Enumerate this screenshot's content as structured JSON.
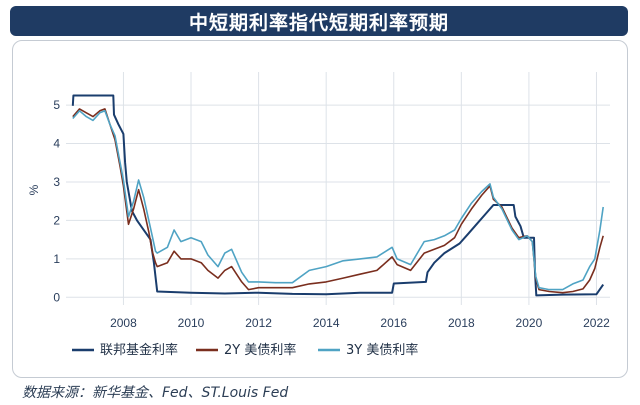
{
  "title": "中短期利率指代短期利率预期",
  "source": "数据来源：新华基金、Fed、ST.Louis Fed",
  "chart_data": {
    "type": "line",
    "ylabel": "%",
    "ylim": [
      -0.2,
      5.6
    ],
    "xlim": [
      2006.3,
      2022.4
    ],
    "x_ticks": [
      2008,
      2010,
      2012,
      2014,
      2016,
      2018,
      2020,
      2022
    ],
    "y_ticks": [
      0,
      1,
      2,
      3,
      4,
      5
    ],
    "legend_position": "bottom",
    "series": [
      {
        "name": "联邦基金利率",
        "color": "#1a3d6d",
        "points": [
          [
            2006.5,
            4.98
          ],
          [
            2006.52,
            5.25
          ],
          [
            2007.7,
            5.25
          ],
          [
            2007.72,
            4.75
          ],
          [
            2007.85,
            4.5
          ],
          [
            2008.0,
            4.25
          ],
          [
            2008.05,
            3.5
          ],
          [
            2008.1,
            3.0
          ],
          [
            2008.25,
            2.25
          ],
          [
            2008.4,
            2.0
          ],
          [
            2008.8,
            1.5
          ],
          [
            2008.9,
            0.9
          ],
          [
            2009.0,
            0.15
          ],
          [
            2010.0,
            0.12
          ],
          [
            2011.0,
            0.1
          ],
          [
            2012.0,
            0.12
          ],
          [
            2013.0,
            0.09
          ],
          [
            2014.0,
            0.08
          ],
          [
            2015.0,
            0.12
          ],
          [
            2015.95,
            0.12
          ],
          [
            2016.0,
            0.36
          ],
          [
            2016.95,
            0.4
          ],
          [
            2017.0,
            0.65
          ],
          [
            2017.2,
            0.9
          ],
          [
            2017.5,
            1.15
          ],
          [
            2017.95,
            1.4
          ],
          [
            2018.2,
            1.65
          ],
          [
            2018.45,
            1.9
          ],
          [
            2018.7,
            2.15
          ],
          [
            2018.95,
            2.4
          ],
          [
            2019.55,
            2.4
          ],
          [
            2019.6,
            2.1
          ],
          [
            2019.75,
            1.85
          ],
          [
            2019.85,
            1.55
          ],
          [
            2020.15,
            1.55
          ],
          [
            2020.18,
            0.65
          ],
          [
            2020.22,
            0.05
          ],
          [
            2021.0,
            0.07
          ],
          [
            2022.0,
            0.08
          ],
          [
            2022.2,
            0.33
          ]
        ]
      },
      {
        "name": "2Y 美债利率",
        "color": "#7a2e1e",
        "points": [
          [
            2006.5,
            4.7
          ],
          [
            2006.7,
            4.9
          ],
          [
            2006.9,
            4.8
          ],
          [
            2007.1,
            4.7
          ],
          [
            2007.3,
            4.85
          ],
          [
            2007.45,
            4.9
          ],
          [
            2007.6,
            4.5
          ],
          [
            2007.75,
            4.1
          ],
          [
            2007.9,
            3.4
          ],
          [
            2008.0,
            2.9
          ],
          [
            2008.15,
            1.9
          ],
          [
            2008.3,
            2.3
          ],
          [
            2008.45,
            2.8
          ],
          [
            2008.6,
            2.3
          ],
          [
            2008.75,
            1.7
          ],
          [
            2008.85,
            1.2
          ],
          [
            2008.95,
            0.9
          ],
          [
            2009.0,
            0.8
          ],
          [
            2009.3,
            0.9
          ],
          [
            2009.5,
            1.2
          ],
          [
            2009.7,
            1.0
          ],
          [
            2010.0,
            1.0
          ],
          [
            2010.3,
            0.9
          ],
          [
            2010.5,
            0.7
          ],
          [
            2010.8,
            0.5
          ],
          [
            2011.0,
            0.7
          ],
          [
            2011.2,
            0.8
          ],
          [
            2011.5,
            0.4
          ],
          [
            2011.7,
            0.2
          ],
          [
            2012.0,
            0.25
          ],
          [
            2012.5,
            0.25
          ],
          [
            2013.0,
            0.25
          ],
          [
            2013.5,
            0.35
          ],
          [
            2014.0,
            0.4
          ],
          [
            2014.5,
            0.5
          ],
          [
            2015.0,
            0.6
          ],
          [
            2015.5,
            0.7
          ],
          [
            2015.95,
            1.05
          ],
          [
            2016.1,
            0.85
          ],
          [
            2016.5,
            0.7
          ],
          [
            2016.9,
            1.15
          ],
          [
            2017.2,
            1.25
          ],
          [
            2017.5,
            1.35
          ],
          [
            2017.8,
            1.55
          ],
          [
            2018.0,
            1.9
          ],
          [
            2018.3,
            2.3
          ],
          [
            2018.6,
            2.65
          ],
          [
            2018.85,
            2.9
          ],
          [
            2018.95,
            2.55
          ],
          [
            2019.2,
            2.35
          ],
          [
            2019.5,
            1.8
          ],
          [
            2019.7,
            1.55
          ],
          [
            2019.95,
            1.6
          ],
          [
            2020.1,
            1.45
          ],
          [
            2020.2,
            0.5
          ],
          [
            2020.3,
            0.2
          ],
          [
            2020.6,
            0.15
          ],
          [
            2021.0,
            0.12
          ],
          [
            2021.3,
            0.15
          ],
          [
            2021.6,
            0.22
          ],
          [
            2021.8,
            0.45
          ],
          [
            2021.95,
            0.75
          ],
          [
            2022.1,
            1.3
          ],
          [
            2022.2,
            1.6
          ]
        ]
      },
      {
        "name": "3Y 美债利率",
        "color": "#4fa3c4",
        "points": [
          [
            2006.5,
            4.65
          ],
          [
            2006.7,
            4.85
          ],
          [
            2006.9,
            4.7
          ],
          [
            2007.1,
            4.6
          ],
          [
            2007.3,
            4.8
          ],
          [
            2007.45,
            4.85
          ],
          [
            2007.6,
            4.5
          ],
          [
            2007.75,
            4.2
          ],
          [
            2007.9,
            3.5
          ],
          [
            2008.0,
            3.05
          ],
          [
            2008.15,
            2.1
          ],
          [
            2008.3,
            2.5
          ],
          [
            2008.45,
            3.05
          ],
          [
            2008.6,
            2.6
          ],
          [
            2008.75,
            2.0
          ],
          [
            2008.85,
            1.6
          ],
          [
            2008.95,
            1.2
          ],
          [
            2009.0,
            1.15
          ],
          [
            2009.3,
            1.3
          ],
          [
            2009.5,
            1.75
          ],
          [
            2009.7,
            1.45
          ],
          [
            2010.0,
            1.55
          ],
          [
            2010.3,
            1.45
          ],
          [
            2010.5,
            1.1
          ],
          [
            2010.8,
            0.8
          ],
          [
            2011.0,
            1.15
          ],
          [
            2011.2,
            1.25
          ],
          [
            2011.5,
            0.65
          ],
          [
            2011.7,
            0.4
          ],
          [
            2012.0,
            0.4
          ],
          [
            2012.5,
            0.38
          ],
          [
            2013.0,
            0.38
          ],
          [
            2013.5,
            0.7
          ],
          [
            2014.0,
            0.8
          ],
          [
            2014.5,
            0.95
          ],
          [
            2015.0,
            1.0
          ],
          [
            2015.5,
            1.05
          ],
          [
            2015.95,
            1.3
          ],
          [
            2016.1,
            1.0
          ],
          [
            2016.5,
            0.85
          ],
          [
            2016.9,
            1.45
          ],
          [
            2017.2,
            1.5
          ],
          [
            2017.5,
            1.6
          ],
          [
            2017.8,
            1.75
          ],
          [
            2018.0,
            2.05
          ],
          [
            2018.3,
            2.45
          ],
          [
            2018.6,
            2.75
          ],
          [
            2018.85,
            2.95
          ],
          [
            2018.95,
            2.6
          ],
          [
            2019.2,
            2.3
          ],
          [
            2019.5,
            1.75
          ],
          [
            2019.7,
            1.5
          ],
          [
            2019.95,
            1.6
          ],
          [
            2020.1,
            1.45
          ],
          [
            2020.2,
            0.55
          ],
          [
            2020.3,
            0.25
          ],
          [
            2020.6,
            0.2
          ],
          [
            2021.0,
            0.2
          ],
          [
            2021.3,
            0.35
          ],
          [
            2021.6,
            0.45
          ],
          [
            2021.8,
            0.8
          ],
          [
            2021.95,
            1.0
          ],
          [
            2022.1,
            1.75
          ],
          [
            2022.2,
            2.35
          ]
        ]
      }
    ]
  }
}
